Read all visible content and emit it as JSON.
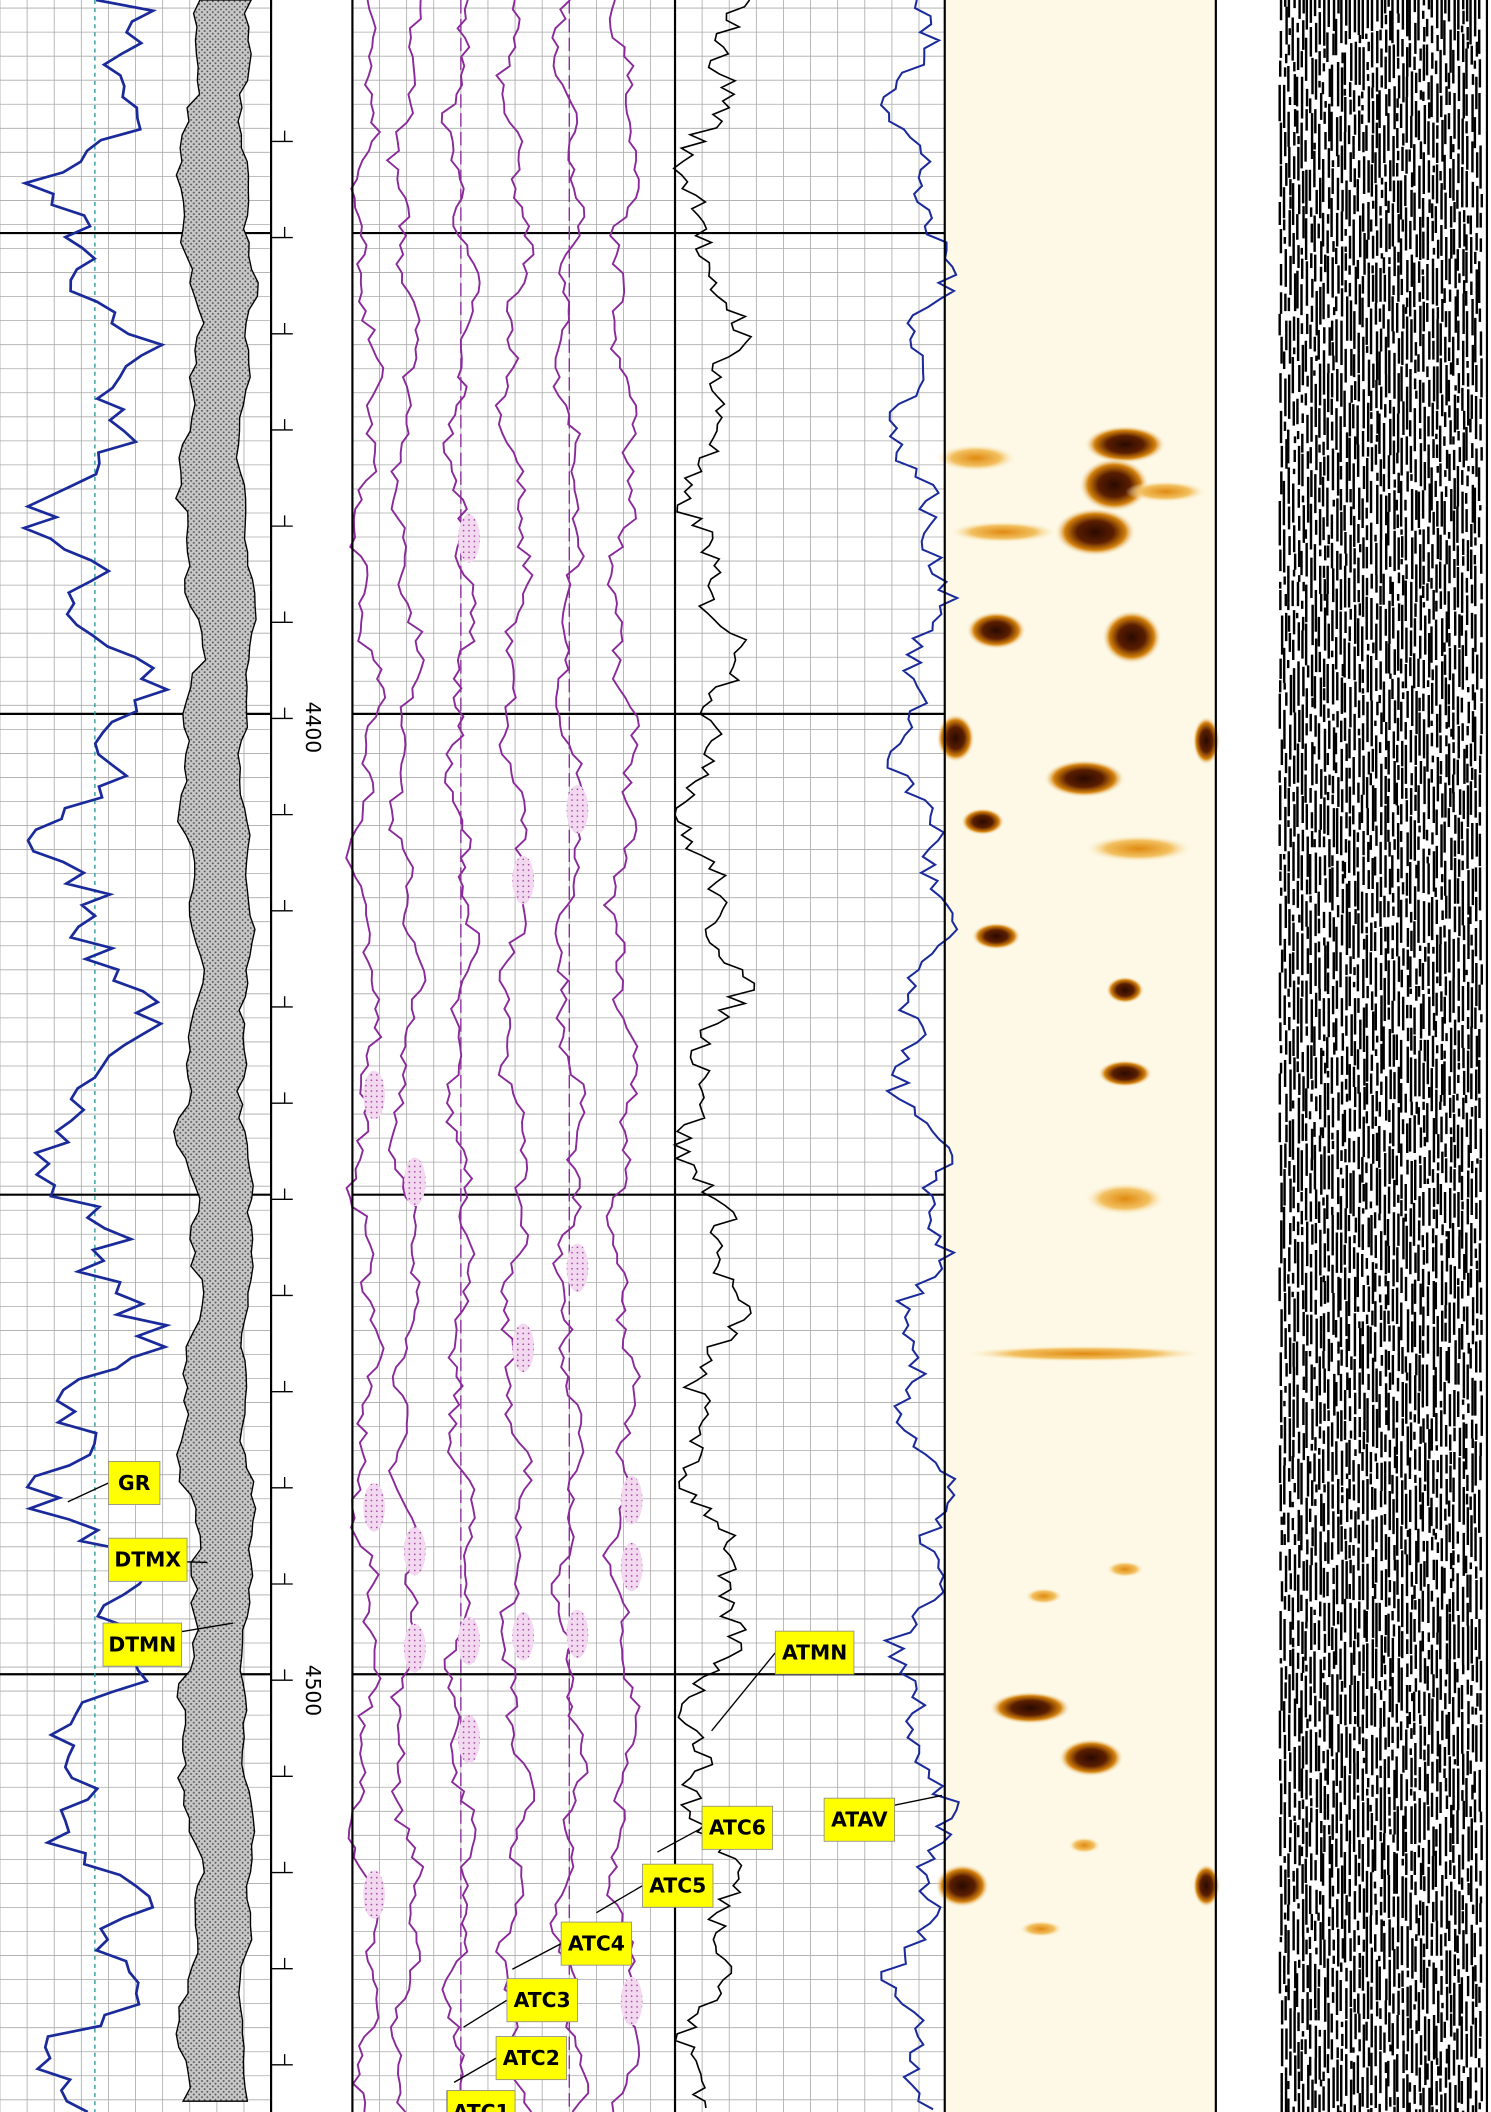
{
  "depth_labels": [
    "4400",
    "4500"
  ],
  "curve_labels": [
    "GR",
    "DTMX",
    "DTMN",
    "ATMN",
    "ATAV",
    "ATC6",
    "ATC5",
    "ATC4",
    "ATC3",
    "ATC2",
    "ATC1"
  ]
}
